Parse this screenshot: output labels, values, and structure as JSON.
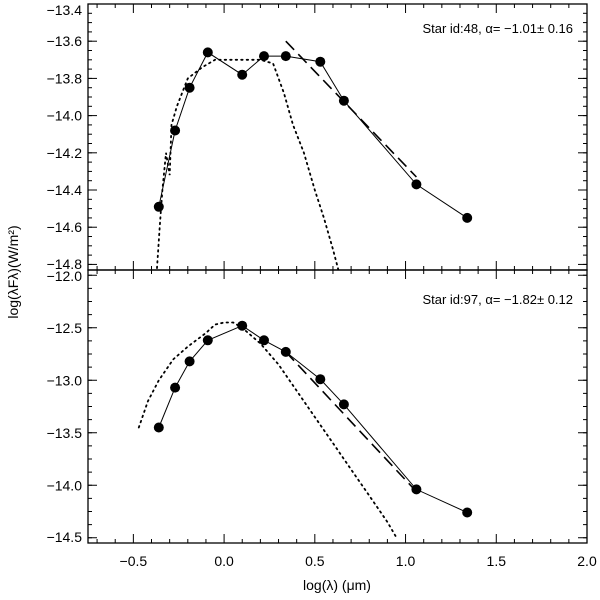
{
  "chart_data": [
    {
      "type": "scatter",
      "title": "",
      "annotation": "Star id:48, α= −1.01± 0.16",
      "xlim": [
        -0.75,
        2.0
      ],
      "ylim": [
        -14.83,
        -13.4
      ],
      "yticks": [
        -14.8,
        -14.6,
        -14.4,
        -14.2,
        -14.0,
        -13.8,
        -13.6,
        -13.4
      ],
      "ytick_labels": [
        "−14.8",
        "−14.6",
        "−14.4",
        "−14.2",
        "−14.0",
        "−13.8",
        "−13.6",
        "−13.4"
      ],
      "observed": {
        "x": [
          -0.36,
          -0.27,
          -0.19,
          -0.09,
          0.1,
          0.22,
          0.34,
          0.53,
          0.66,
          1.06,
          1.34
        ],
        "y": [
          -14.49,
          -14.08,
          -13.85,
          -13.66,
          -13.78,
          -13.68,
          -13.68,
          -13.71,
          -13.92,
          -14.37,
          -14.55
        ]
      },
      "model_dotted": {
        "x": [
          -0.37,
          -0.355,
          -0.34,
          -0.32,
          -0.3,
          -0.29,
          -0.26,
          -0.2,
          -0.12,
          -0.05,
          0.0,
          0.1,
          0.2,
          0.27,
          0.33,
          0.38,
          0.44,
          0.5,
          0.55,
          0.6,
          0.63
        ],
        "y": [
          -14.82,
          -14.6,
          -14.4,
          -14.2,
          -14.32,
          -14.05,
          -13.95,
          -13.8,
          -13.74,
          -13.7,
          -13.7,
          -13.7,
          -13.7,
          -13.72,
          -13.88,
          -14.05,
          -14.2,
          -14.4,
          -14.55,
          -14.72,
          -14.83
        ]
      },
      "fit_dashed": {
        "x": [
          0.34,
          1.06
        ],
        "y": [
          -13.6,
          -14.33
        ]
      }
    },
    {
      "type": "scatter",
      "title": "",
      "annotation": "Star id:97, α= −1.82± 0.12",
      "xlim": [
        -0.75,
        2.0
      ],
      "ylim": [
        -14.55,
        -11.95
      ],
      "yticks": [
        -14.5,
        -14.0,
        -13.5,
        -13.0,
        -12.5,
        -12.0
      ],
      "ytick_labels": [
        "−14.5",
        "−14.0",
        "−13.5",
        "−13.0",
        "−12.5",
        "−12.0"
      ],
      "observed": {
        "x": [
          -0.36,
          -0.27,
          -0.19,
          -0.09,
          0.1,
          0.22,
          0.34,
          0.53,
          0.66,
          1.06,
          1.34
        ],
        "y": [
          -13.45,
          -13.07,
          -12.82,
          -12.62,
          -12.48,
          -12.62,
          -12.73,
          -12.99,
          -13.23,
          -14.04,
          -14.26
        ]
      },
      "model_dotted": {
        "x": [
          -0.47,
          -0.42,
          -0.36,
          -0.28,
          -0.2,
          -0.1,
          -0.05,
          0.0,
          0.05,
          0.1,
          0.2,
          0.3,
          0.4,
          0.5,
          0.6,
          0.7,
          0.8,
          0.9,
          0.95
        ],
        "y": [
          -13.45,
          -13.2,
          -13.0,
          -12.8,
          -12.68,
          -12.55,
          -12.47,
          -12.45,
          -12.45,
          -12.5,
          -12.65,
          -12.85,
          -13.1,
          -13.35,
          -13.6,
          -13.85,
          -14.1,
          -14.35,
          -14.5
        ]
      },
      "fit_dashed": {
        "x": [
          0.34,
          1.06
        ],
        "y": [
          -12.73,
          -14.06
        ]
      }
    }
  ],
  "xaxis": {
    "ticks": [
      -0.5,
      0.0,
      0.5,
      1.0,
      1.5,
      2.0
    ],
    "tick_labels": [
      "−0.5",
      "0.0",
      "0.5",
      "1.0",
      "1.5",
      "2.0"
    ],
    "label": "log(λ)  (μm)"
  },
  "yaxis": {
    "label": "log(λFλ)(W/m²)"
  }
}
